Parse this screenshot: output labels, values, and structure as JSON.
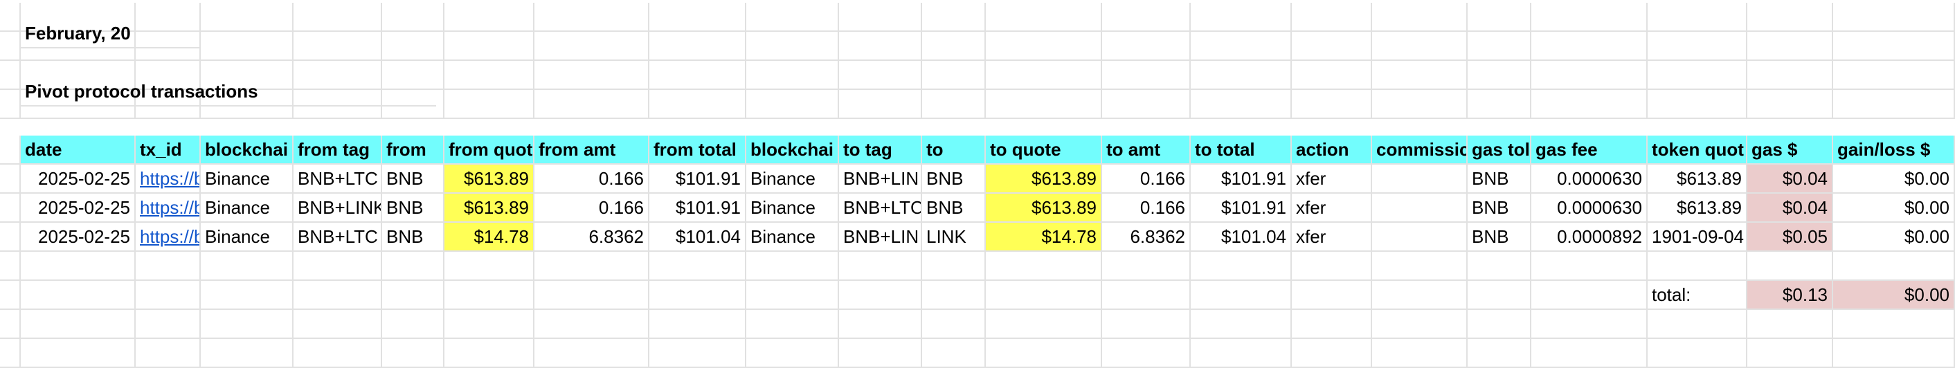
{
  "title_line": "February, 20",
  "section_title": "Pivot protocol transactions",
  "columns": [
    "date",
    "tx_id",
    "blockchai",
    "from tag",
    "from",
    "from quot",
    "from amt",
    "from total",
    "blockchai",
    "to tag",
    "to",
    "to quote",
    "to amt",
    "to total",
    "action",
    "commissic",
    "gas tol",
    "gas fee",
    "token quot",
    "gas $",
    "gain/loss $"
  ],
  "rows": [
    [
      "2025-02-25",
      "https://b",
      "Binance",
      "BNB+LTC",
      "BNB",
      "$613.89",
      "0.166",
      "$101.91",
      "Binance",
      "BNB+LIN",
      "BNB",
      "$613.89",
      "0.166",
      "$101.91",
      "xfer",
      "",
      "BNB",
      "0.0000630",
      "$613.89",
      "$0.04",
      "$0.00"
    ],
    [
      "2025-02-25",
      "https://b",
      "Binance",
      "BNB+LINK",
      "BNB",
      "$613.89",
      "0.166",
      "$101.91",
      "Binance",
      "BNB+LTC",
      "BNB",
      "$613.89",
      "0.166",
      "$101.91",
      "xfer",
      "",
      "BNB",
      "0.0000630",
      "$613.89",
      "$0.04",
      "$0.00"
    ],
    [
      "2025-02-25",
      "https://b",
      "Binance",
      "BNB+LTC",
      "BNB",
      "$14.78",
      "6.8362",
      "$101.04",
      "Binance",
      "BNB+LIN",
      "LINK",
      "$14.78",
      "6.8362",
      "$101.04",
      "xfer",
      "",
      "BNB",
      "0.0000892",
      "1901-09-04",
      "$0.05",
      "$0.00"
    ]
  ],
  "totals": {
    "label": "total:",
    "gas": "$0.13",
    "gain_loss": "$0.00"
  },
  "colors": {
    "header": "#72fdfd",
    "highlight": "#ffff56",
    "pink": "#ebcccc",
    "link": "#1155cc",
    "grid": "#e1e1e1"
  }
}
